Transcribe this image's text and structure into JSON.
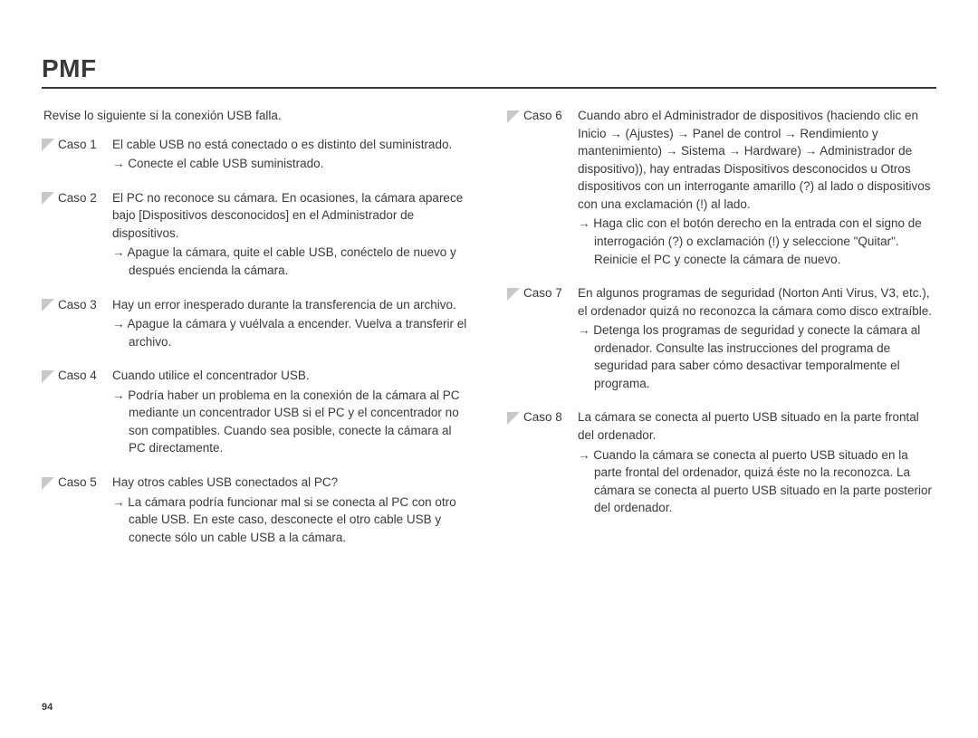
{
  "title": "PMF",
  "intro": "Revise lo siguiente si la conexión USB falla.",
  "pageNumber": "94",
  "colors": {
    "text": "#3a3a3a",
    "triangle": "#c8c8c8",
    "rule": "#3a3a3a",
    "background": "#ffffff"
  },
  "leftCases": [
    {
      "label": "Caso 1",
      "desc": "El cable USB no está conectado o es distinto del suministrado.",
      "solution": "→ Conecte el cable USB suministrado."
    },
    {
      "label": "Caso 2",
      "desc": "El PC no reconoce su cámara.\nEn ocasiones, la cámara aparece bajo [Dispositivos desconocidos] en el Administrador de dispositivos.",
      "solution": "→ Apague la cámara, quite el cable USB, conéctelo de nuevo y después encienda la cámara."
    },
    {
      "label": "Caso 3",
      "desc": "Hay un error inesperado durante la transferencia de un archivo.",
      "solution": "→ Apague la cámara y vuélvala a encender. Vuelva a transferir el archivo."
    },
    {
      "label": "Caso 4",
      "desc": "Cuando utilice el concentrador USB.",
      "solution": "→ Podría haber un problema en la conexión de la cámara al PC mediante un concentrador USB si el PC y el concentrador no son compatibles. Cuando sea posible, conecte la cámara al PC directamente."
    },
    {
      "label": "Caso 5",
      "desc": "Hay otros cables USB conectados al PC?",
      "solution": "→ La cámara podría funcionar mal si se conecta al PC con otro cable USB. En este caso, desconecte el otro cable USB y conecte sólo un cable USB a la cámara."
    }
  ],
  "rightCases": [
    {
      "label": "Caso 6",
      "desc": "Cuando abro el Administrador de dispositivos (haciendo clic en Inicio → (Ajustes) → Panel de control → Rendimiento y mantenimiento) → Sistema → Hardware) → Administrador de dispositivo)), hay entradas Dispositivos desconocidos u Otros dispositivos con un interrogante amarillo (?) al lado o dispositivos con una exclamación (!) al lado.",
      "solution": "→ Haga clic con el botón derecho en la entrada con el signo de interrogación (?) o exclamación (!) y seleccione \"Quitar\". Reinicie el PC y conecte la cámara de nuevo."
    },
    {
      "label": "Caso 7",
      "desc": "En algunos programas de seguridad (Norton Anti Virus, V3, etc.), el ordenador quizá no reconozca la cámara como disco extraíble.",
      "solution": "→ Detenga los programas de seguridad y conecte la cámara al ordenador. Consulte las instrucciones del programa de seguridad para saber cómo desactivar temporalmente el programa."
    },
    {
      "label": "Caso 8",
      "desc": "La cámara se conecta al puerto USB situado en la parte frontal del ordenador.",
      "solution": "→ Cuando la cámara se conecta al puerto USB situado en la parte frontal del ordenador, quizá éste no la reconozca. La cámara se conecta al puerto USB situado en la parte posterior del ordenador."
    }
  ]
}
